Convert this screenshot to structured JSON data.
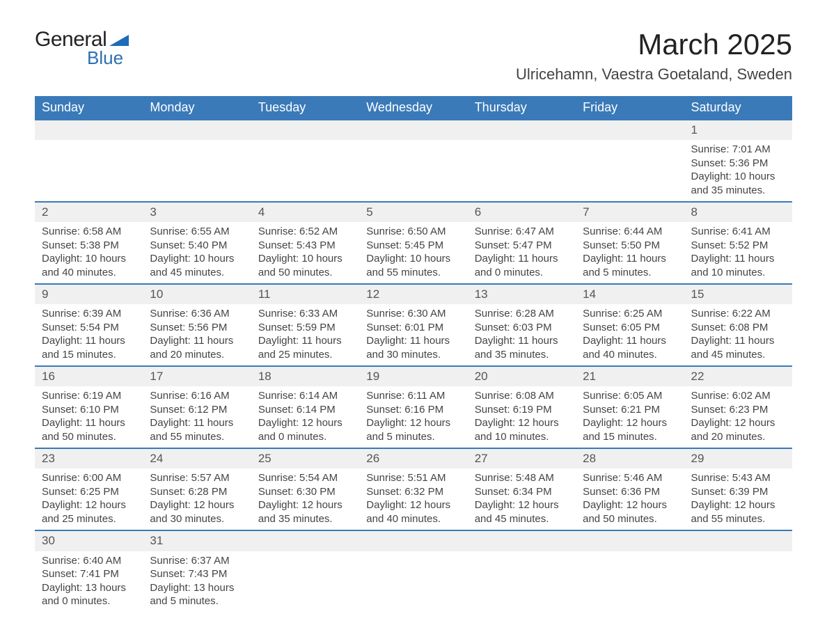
{
  "logo": {
    "text1": "General",
    "text2": "Blue",
    "shape_color": "#1e6bb8"
  },
  "title": "March 2025",
  "location": "Ulricehamn, Vaestra Goetaland, Sweden",
  "colors": {
    "header_bg": "#3a7ab8",
    "header_text": "#ffffff",
    "row_border": "#3a7ab8",
    "daynum_bg": "#f0f0f0",
    "body_text": "#444444"
  },
  "weekdays": [
    "Sunday",
    "Monday",
    "Tuesday",
    "Wednesday",
    "Thursday",
    "Friday",
    "Saturday"
  ],
  "weeks": [
    [
      null,
      null,
      null,
      null,
      null,
      null,
      {
        "n": 1,
        "sunrise": "7:01 AM",
        "sunset": "5:36 PM",
        "daylight": "10 hours and 35 minutes."
      }
    ],
    [
      {
        "n": 2,
        "sunrise": "6:58 AM",
        "sunset": "5:38 PM",
        "daylight": "10 hours and 40 minutes."
      },
      {
        "n": 3,
        "sunrise": "6:55 AM",
        "sunset": "5:40 PM",
        "daylight": "10 hours and 45 minutes."
      },
      {
        "n": 4,
        "sunrise": "6:52 AM",
        "sunset": "5:43 PM",
        "daylight": "10 hours and 50 minutes."
      },
      {
        "n": 5,
        "sunrise": "6:50 AM",
        "sunset": "5:45 PM",
        "daylight": "10 hours and 55 minutes."
      },
      {
        "n": 6,
        "sunrise": "6:47 AM",
        "sunset": "5:47 PM",
        "daylight": "11 hours and 0 minutes."
      },
      {
        "n": 7,
        "sunrise": "6:44 AM",
        "sunset": "5:50 PM",
        "daylight": "11 hours and 5 minutes."
      },
      {
        "n": 8,
        "sunrise": "6:41 AM",
        "sunset": "5:52 PM",
        "daylight": "11 hours and 10 minutes."
      }
    ],
    [
      {
        "n": 9,
        "sunrise": "6:39 AM",
        "sunset": "5:54 PM",
        "daylight": "11 hours and 15 minutes."
      },
      {
        "n": 10,
        "sunrise": "6:36 AM",
        "sunset": "5:56 PM",
        "daylight": "11 hours and 20 minutes."
      },
      {
        "n": 11,
        "sunrise": "6:33 AM",
        "sunset": "5:59 PM",
        "daylight": "11 hours and 25 minutes."
      },
      {
        "n": 12,
        "sunrise": "6:30 AM",
        "sunset": "6:01 PM",
        "daylight": "11 hours and 30 minutes."
      },
      {
        "n": 13,
        "sunrise": "6:28 AM",
        "sunset": "6:03 PM",
        "daylight": "11 hours and 35 minutes."
      },
      {
        "n": 14,
        "sunrise": "6:25 AM",
        "sunset": "6:05 PM",
        "daylight": "11 hours and 40 minutes."
      },
      {
        "n": 15,
        "sunrise": "6:22 AM",
        "sunset": "6:08 PM",
        "daylight": "11 hours and 45 minutes."
      }
    ],
    [
      {
        "n": 16,
        "sunrise": "6:19 AM",
        "sunset": "6:10 PM",
        "daylight": "11 hours and 50 minutes."
      },
      {
        "n": 17,
        "sunrise": "6:16 AM",
        "sunset": "6:12 PM",
        "daylight": "11 hours and 55 minutes."
      },
      {
        "n": 18,
        "sunrise": "6:14 AM",
        "sunset": "6:14 PM",
        "daylight": "12 hours and 0 minutes."
      },
      {
        "n": 19,
        "sunrise": "6:11 AM",
        "sunset": "6:16 PM",
        "daylight": "12 hours and 5 minutes."
      },
      {
        "n": 20,
        "sunrise": "6:08 AM",
        "sunset": "6:19 PM",
        "daylight": "12 hours and 10 minutes."
      },
      {
        "n": 21,
        "sunrise": "6:05 AM",
        "sunset": "6:21 PM",
        "daylight": "12 hours and 15 minutes."
      },
      {
        "n": 22,
        "sunrise": "6:02 AM",
        "sunset": "6:23 PM",
        "daylight": "12 hours and 20 minutes."
      }
    ],
    [
      {
        "n": 23,
        "sunrise": "6:00 AM",
        "sunset": "6:25 PM",
        "daylight": "12 hours and 25 minutes."
      },
      {
        "n": 24,
        "sunrise": "5:57 AM",
        "sunset": "6:28 PM",
        "daylight": "12 hours and 30 minutes."
      },
      {
        "n": 25,
        "sunrise": "5:54 AM",
        "sunset": "6:30 PM",
        "daylight": "12 hours and 35 minutes."
      },
      {
        "n": 26,
        "sunrise": "5:51 AM",
        "sunset": "6:32 PM",
        "daylight": "12 hours and 40 minutes."
      },
      {
        "n": 27,
        "sunrise": "5:48 AM",
        "sunset": "6:34 PM",
        "daylight": "12 hours and 45 minutes."
      },
      {
        "n": 28,
        "sunrise": "5:46 AM",
        "sunset": "6:36 PM",
        "daylight": "12 hours and 50 minutes."
      },
      {
        "n": 29,
        "sunrise": "5:43 AM",
        "sunset": "6:39 PM",
        "daylight": "12 hours and 55 minutes."
      }
    ],
    [
      {
        "n": 30,
        "sunrise": "6:40 AM",
        "sunset": "7:41 PM",
        "daylight": "13 hours and 0 minutes."
      },
      {
        "n": 31,
        "sunrise": "6:37 AM",
        "sunset": "7:43 PM",
        "daylight": "13 hours and 5 minutes."
      },
      null,
      null,
      null,
      null,
      null
    ]
  ],
  "labels": {
    "sunrise": "Sunrise: ",
    "sunset": "Sunset: ",
    "daylight": "Daylight: "
  }
}
